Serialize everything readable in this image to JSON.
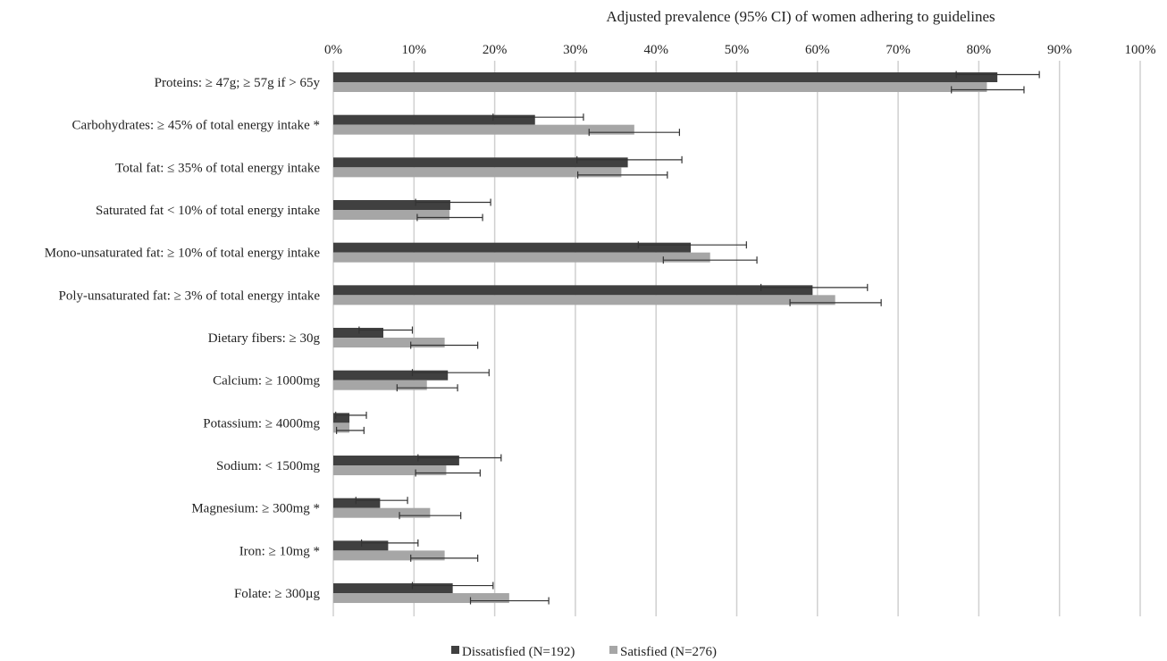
{
  "chart_data": {
    "type": "bar",
    "orientation": "horizontal",
    "title": "",
    "xlabel": "Adjusted prevalence (95% CI) of women adhering to guidelines",
    "xlabel_position": "top",
    "xlim": [
      0,
      100
    ],
    "x_ticks": [
      "0%",
      "10%",
      "20%",
      "30%",
      "40%",
      "50%",
      "60%",
      "70%",
      "80%",
      "90%",
      "100%"
    ],
    "grid": true,
    "legend_position": "bottom",
    "categories": [
      "Proteins: ≥ 47g; ≥ 57g if > 65y",
      "Carbohydrates: ≥ 45% of total energy intake *",
      "Total fat: ≤ 35% of total energy intake",
      "Saturated fat < 10% of total energy intake",
      "Mono-unsaturated fat: ≥ 10% of total energy intake",
      "Poly-unsaturated fat: ≥ 3% of total energy intake",
      "Dietary fibers: ≥ 30g",
      "Calcium: ≥ 1000mg",
      "Potassium: ≥ 4000mg",
      "Sodium: < 1500mg",
      "Magnesium: ≥ 300mg *",
      "Iron: ≥ 10mg *",
      "Folate: ≥ 300µg"
    ],
    "series": [
      {
        "name": "Dissatisfied (N=192)",
        "color": "#404040",
        "values": [
          82.3,
          25.0,
          36.5,
          14.5,
          44.3,
          59.4,
          6.2,
          14.2,
          2.0,
          15.6,
          5.8,
          6.8,
          14.8
        ],
        "ci_lower": [
          77.2,
          19.8,
          30.2,
          10.2,
          37.8,
          53.0,
          3.2,
          9.8,
          0.3,
          10.5,
          2.8,
          3.5,
          9.8
        ],
        "ci_upper": [
          87.5,
          31.0,
          43.2,
          19.5,
          51.2,
          66.2,
          9.8,
          19.3,
          4.1,
          20.8,
          9.2,
          10.5,
          19.8
        ]
      },
      {
        "name": "Satisfied (N=276)",
        "color": "#a6a6a6",
        "values": [
          81.0,
          37.3,
          35.7,
          14.4,
          46.7,
          62.2,
          13.8,
          11.6,
          2.0,
          14.0,
          12.0,
          13.8,
          21.8
        ],
        "ci_lower": [
          76.6,
          31.7,
          30.3,
          10.4,
          40.9,
          56.6,
          9.6,
          7.9,
          0.4,
          10.2,
          8.2,
          9.6,
          17.0
        ],
        "ci_upper": [
          85.6,
          42.9,
          41.4,
          18.5,
          52.5,
          67.9,
          17.9,
          15.4,
          3.8,
          18.2,
          15.8,
          17.9,
          26.7
        ]
      }
    ]
  }
}
